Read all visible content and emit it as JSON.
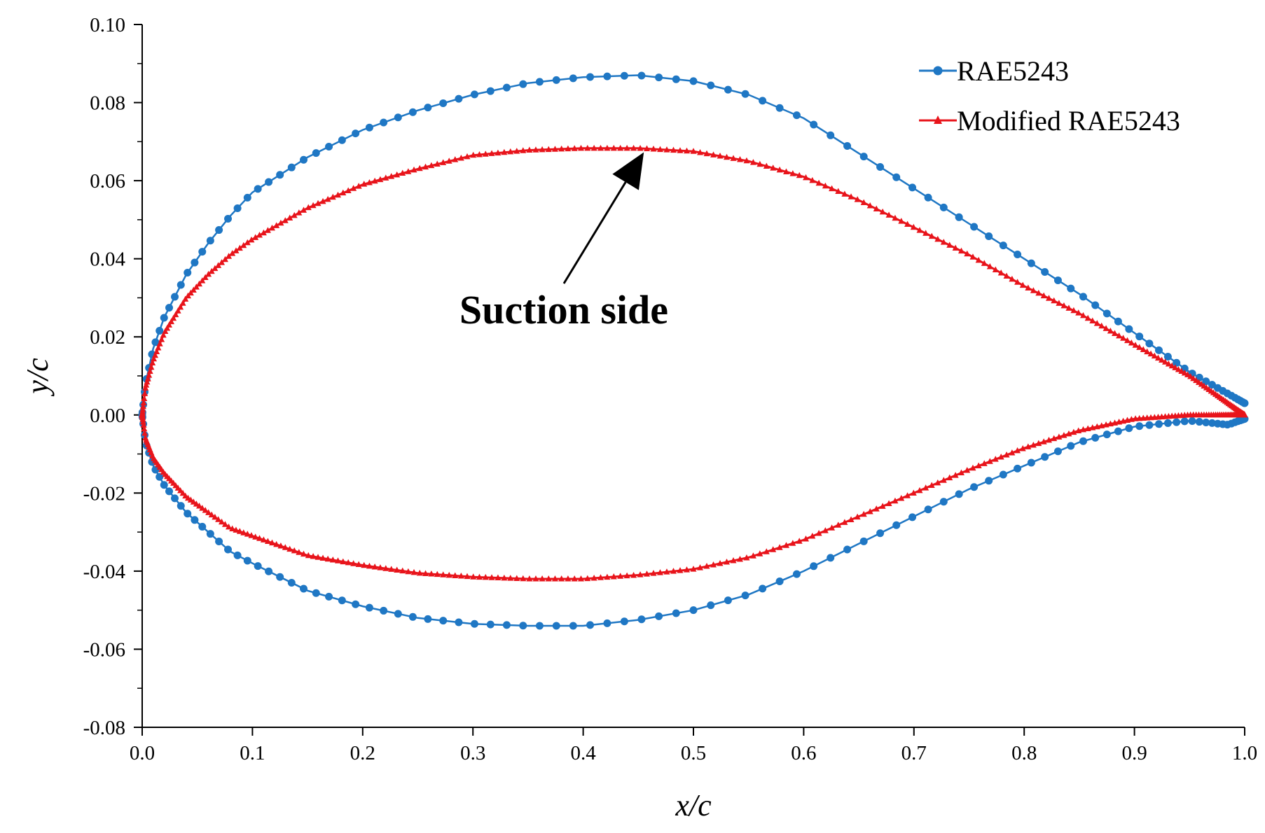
{
  "chart_data": {
    "type": "scatter",
    "xlabel": "x/c",
    "ylabel": "y/c",
    "xlim": [
      0.0,
      1.0
    ],
    "ylim": [
      -0.08,
      0.1
    ],
    "x_ticks": [
      "0.0",
      "0.1",
      "0.2",
      "0.3",
      "0.4",
      "0.5",
      "0.6",
      "0.7",
      "0.8",
      "0.9",
      "1.0"
    ],
    "y_ticks": [
      "0.10",
      "0.08",
      "0.06",
      "0.04",
      "0.02",
      "0.00",
      "-0.02",
      "-0.04",
      "-0.06",
      "-0.08"
    ],
    "grid": false,
    "legend_position": "top-right",
    "annotation": {
      "text": "Suction side",
      "points_to": [
        0.455,
        0.068
      ]
    },
    "series": [
      {
        "name": "RAE5243",
        "color": "#1f77c4",
        "marker": "circle",
        "upper": [
          [
            0.0,
            0.0
          ],
          [
            0.003,
            0.008
          ],
          [
            0.01,
            0.017
          ],
          [
            0.02,
            0.025
          ],
          [
            0.04,
            0.036
          ],
          [
            0.06,
            0.044
          ],
          [
            0.08,
            0.051
          ],
          [
            0.1,
            0.057
          ],
          [
            0.15,
            0.066
          ],
          [
            0.2,
            0.073
          ],
          [
            0.25,
            0.078
          ],
          [
            0.3,
            0.082
          ],
          [
            0.35,
            0.085
          ],
          [
            0.4,
            0.0865
          ],
          [
            0.45,
            0.087
          ],
          [
            0.5,
            0.0855
          ],
          [
            0.55,
            0.082
          ],
          [
            0.6,
            0.076
          ],
          [
            0.65,
            0.067
          ],
          [
            0.7,
            0.058
          ],
          [
            0.75,
            0.049
          ],
          [
            0.8,
            0.04
          ],
          [
            0.85,
            0.031
          ],
          [
            0.9,
            0.021
          ],
          [
            0.95,
            0.011
          ],
          [
            1.0,
            0.003
          ]
        ],
        "lower": [
          [
            0.0,
            0.0
          ],
          [
            0.003,
            -0.007
          ],
          [
            0.01,
            -0.013
          ],
          [
            0.02,
            -0.018
          ],
          [
            0.04,
            -0.025
          ],
          [
            0.06,
            -0.03
          ],
          [
            0.08,
            -0.035
          ],
          [
            0.1,
            -0.038
          ],
          [
            0.15,
            -0.045
          ],
          [
            0.2,
            -0.049
          ],
          [
            0.25,
            -0.052
          ],
          [
            0.3,
            -0.0535
          ],
          [
            0.35,
            -0.054
          ],
          [
            0.4,
            -0.054
          ],
          [
            0.45,
            -0.0525
          ],
          [
            0.5,
            -0.05
          ],
          [
            0.55,
            -0.046
          ],
          [
            0.6,
            -0.04
          ],
          [
            0.65,
            -0.033
          ],
          [
            0.7,
            -0.026
          ],
          [
            0.75,
            -0.019
          ],
          [
            0.8,
            -0.013
          ],
          [
            0.85,
            -0.007
          ],
          [
            0.9,
            -0.003
          ],
          [
            0.95,
            -0.0015
          ],
          [
            0.985,
            -0.0025
          ],
          [
            1.0,
            -0.001
          ]
        ]
      },
      {
        "name": "Modified RAE5243",
        "color": "#e8141b",
        "marker": "triangle",
        "upper": [
          [
            0.0,
            0.0
          ],
          [
            0.003,
            0.007
          ],
          [
            0.01,
            0.014
          ],
          [
            0.02,
            0.021
          ],
          [
            0.04,
            0.03
          ],
          [
            0.06,
            0.036
          ],
          [
            0.08,
            0.041
          ],
          [
            0.1,
            0.045
          ],
          [
            0.15,
            0.053
          ],
          [
            0.2,
            0.059
          ],
          [
            0.25,
            0.063
          ],
          [
            0.3,
            0.0665
          ],
          [
            0.35,
            0.0678
          ],
          [
            0.4,
            0.0683
          ],
          [
            0.45,
            0.0683
          ],
          [
            0.5,
            0.0675
          ],
          [
            0.55,
            0.065
          ],
          [
            0.6,
            0.061
          ],
          [
            0.65,
            0.055
          ],
          [
            0.7,
            0.048
          ],
          [
            0.75,
            0.041
          ],
          [
            0.8,
            0.033
          ],
          [
            0.85,
            0.026
          ],
          [
            0.9,
            0.018
          ],
          [
            0.95,
            0.01
          ],
          [
            1.0,
            0.0
          ]
        ],
        "lower": [
          [
            0.0,
            0.0
          ],
          [
            0.003,
            -0.006
          ],
          [
            0.01,
            -0.011
          ],
          [
            0.02,
            -0.015
          ],
          [
            0.04,
            -0.021
          ],
          [
            0.06,
            -0.025
          ],
          [
            0.08,
            -0.029
          ],
          [
            0.1,
            -0.031
          ],
          [
            0.15,
            -0.036
          ],
          [
            0.2,
            -0.0385
          ],
          [
            0.25,
            -0.0405
          ],
          [
            0.3,
            -0.0415
          ],
          [
            0.35,
            -0.042
          ],
          [
            0.4,
            -0.042
          ],
          [
            0.45,
            -0.041
          ],
          [
            0.5,
            -0.0395
          ],
          [
            0.55,
            -0.0365
          ],
          [
            0.6,
            -0.032
          ],
          [
            0.65,
            -0.026
          ],
          [
            0.7,
            -0.02
          ],
          [
            0.75,
            -0.014
          ],
          [
            0.8,
            -0.0085
          ],
          [
            0.85,
            -0.004
          ],
          [
            0.9,
            -0.001
          ],
          [
            0.95,
            0.0
          ],
          [
            1.0,
            0.0
          ]
        ]
      }
    ]
  }
}
